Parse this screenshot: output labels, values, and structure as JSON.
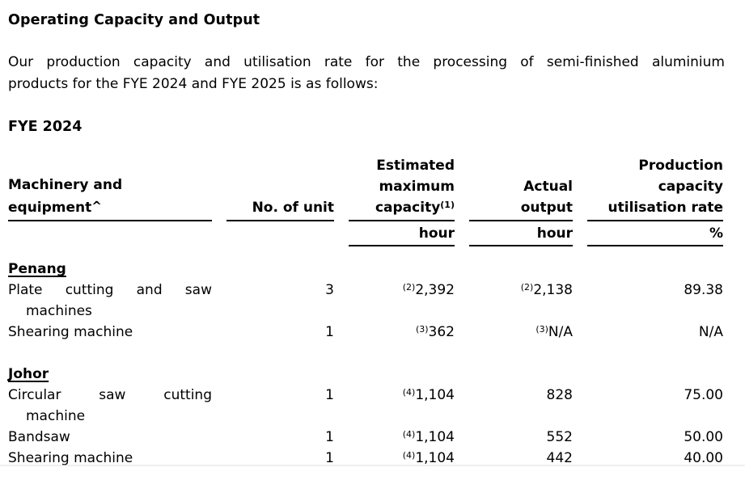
{
  "page": {
    "title": "Operating Capacity and Output",
    "intro_line1": "Our production capacity and utilisation rate for the processing of semi-finished aluminium",
    "intro_line2": "products for the FYE 2024 and FYE 2025 is as follows:",
    "period_heading": "FYE 2024"
  },
  "table": {
    "header": {
      "col1_line1": "Machinery and",
      "col1_line2": "equipment",
      "col1_marker": "^",
      "col2": "No. of unit",
      "col3_line1": "Estimated",
      "col3_line2": "maximum",
      "col3_line3": "capacity",
      "col3_marker": "(1)",
      "col4_line1": "Actual",
      "col4_line2": "output",
      "col5_line1": "Production",
      "col5_line2": "capacity",
      "col5_line3": "utilisation rate",
      "unit_col3": "hour",
      "unit_col4": "hour",
      "unit_col5": "%"
    },
    "sections": [
      {
        "region": "Penang",
        "rows": [
          {
            "name_line1": "Plate cutting and saw",
            "name_line2": "machines",
            "units": "3",
            "capacity_sup": "(2)",
            "capacity": "2,392",
            "output_sup": "(2)",
            "output": "2,138",
            "rate": "89.38"
          },
          {
            "name_line1": "Shearing machine",
            "name_line2": "",
            "units": "1",
            "capacity_sup": "(3)",
            "capacity": "362",
            "output_sup": "(3)",
            "output": "N/A",
            "rate": "N/A"
          }
        ]
      },
      {
        "region": "Johor",
        "rows": [
          {
            "name_line1": "Circular saw cutting",
            "name_line2": "machine",
            "units": "1",
            "capacity_sup": "(4)",
            "capacity": "1,104",
            "output_sup": "",
            "output": "828",
            "rate": "75.00"
          },
          {
            "name_line1": "Bandsaw",
            "name_line2": "",
            "units": "1",
            "capacity_sup": "(4)",
            "capacity": "1,104",
            "output_sup": "",
            "output": "552",
            "rate": "50.00"
          },
          {
            "name_line1": "Shearing machine",
            "name_line2": "",
            "units": "1",
            "capacity_sup": "(4)",
            "capacity": "1,104",
            "output_sup": "",
            "output": "442",
            "rate": "40.00"
          }
        ]
      }
    ]
  }
}
